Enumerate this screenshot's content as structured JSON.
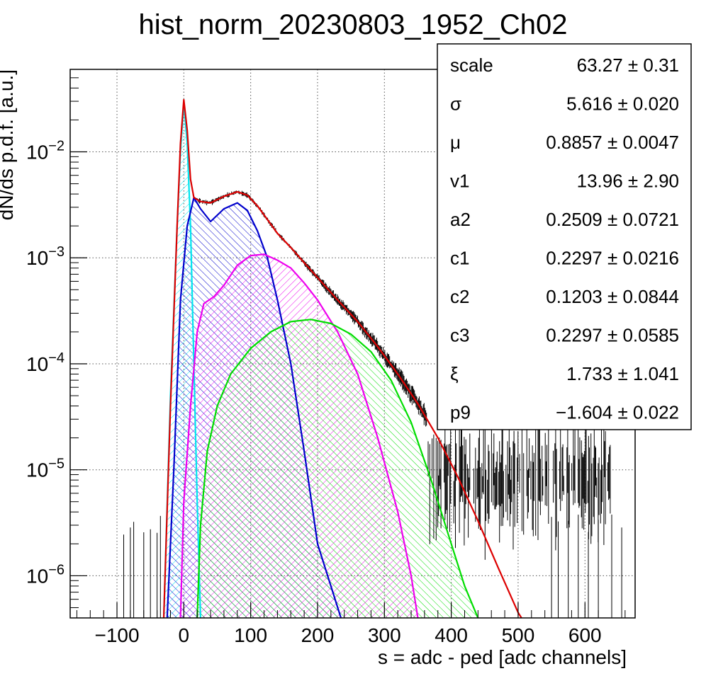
{
  "chart_data": {
    "type": "line",
    "title": "hist_norm_20230803_1952_Ch02",
    "xlabel": "s = adc - ped [adc channels]",
    "ylabel": "dN/ds p.d.f. [a.u.]",
    "xlim": [
      -170,
      675
    ],
    "ylim": [
      4e-07,
      0.06
    ],
    "y_scale": "log",
    "grid": true,
    "x_ticks": [
      -100,
      0,
      100,
      200,
      300,
      400,
      500,
      600
    ],
    "x_tick_labels": [
      "−100",
      "0",
      "100",
      "200",
      "300",
      "400",
      "500",
      "600"
    ],
    "y_ticks": [
      1e-06,
      1e-05,
      0.0001,
      0.001,
      0.01
    ],
    "y_tick_labels": [
      {
        "base": "10",
        "exp": "−6"
      },
      {
        "base": "10",
        "exp": "−5"
      },
      {
        "base": "10",
        "exp": "−4"
      },
      {
        "base": "10",
        "exp": "−3"
      },
      {
        "base": "10",
        "exp": "−2"
      }
    ],
    "series": [
      {
        "color": "#00e5ee",
        "hatched": true,
        "points": [
          [
            -30,
            4e-07
          ],
          [
            -20,
            5e-05
          ],
          [
            -10,
            0.002
          ],
          [
            -5,
            0.01
          ],
          [
            0,
            0.029
          ],
          [
            5,
            0.012
          ],
          [
            10,
            0.002
          ],
          [
            15,
            0.0001
          ],
          [
            20,
            5e-06
          ],
          [
            25,
            4e-07
          ]
        ]
      },
      {
        "color": "#0000cc",
        "hatched": true,
        "points": [
          [
            -25,
            4e-07
          ],
          [
            -15,
            1e-05
          ],
          [
            -5,
            0.0004
          ],
          [
            5,
            0.002
          ],
          [
            15,
            0.0037
          ],
          [
            25,
            0.0029
          ],
          [
            40,
            0.0022
          ],
          [
            60,
            0.0029
          ],
          [
            80,
            0.0033
          ],
          [
            95,
            0.0028
          ],
          [
            110,
            0.0018
          ],
          [
            125,
            0.001
          ],
          [
            140,
            0.0004
          ],
          [
            160,
            0.0001
          ],
          [
            180,
            1.5e-05
          ],
          [
            200,
            2e-06
          ],
          [
            220,
            8e-07
          ],
          [
            235,
            4e-07
          ]
        ]
      },
      {
        "color": "#ee00ee",
        "hatched": true,
        "points": [
          [
            -5,
            4e-07
          ],
          [
            0,
            5e-06
          ],
          [
            10,
            4e-05
          ],
          [
            20,
            0.0002
          ],
          [
            30,
            0.00037
          ],
          [
            45,
            0.00043
          ],
          [
            60,
            0.00055
          ],
          [
            80,
            0.00085
          ],
          [
            100,
            0.00105
          ],
          [
            120,
            0.00108
          ],
          [
            140,
            0.00095
          ],
          [
            160,
            0.0008
          ],
          [
            180,
            0.00058
          ],
          [
            200,
            0.0004
          ],
          [
            230,
            0.0002
          ],
          [
            260,
            8e-05
          ],
          [
            290,
            2e-05
          ],
          [
            320,
            4e-06
          ],
          [
            340,
            1e-06
          ],
          [
            350,
            4e-07
          ]
        ]
      },
      {
        "color": "#00dd00",
        "hatched": true,
        "points": [
          [
            20,
            4e-07
          ],
          [
            25,
            3e-06
          ],
          [
            35,
            1.5e-05
          ],
          [
            50,
            4e-05
          ],
          [
            70,
            8e-05
          ],
          [
            100,
            0.00014
          ],
          [
            130,
            0.0002
          ],
          [
            160,
            0.00025
          ],
          [
            190,
            0.000262
          ],
          [
            220,
            0.00024
          ],
          [
            250,
            0.00019
          ],
          [
            280,
            0.00013
          ],
          [
            310,
            7e-05
          ],
          [
            340,
            2.8e-05
          ],
          [
            370,
            8e-06
          ],
          [
            400,
            2e-06
          ],
          [
            420,
            8e-07
          ],
          [
            440,
            4e-07
          ]
        ]
      },
      {
        "color": "#dd0000",
        "hatched": false,
        "points": [
          [
            -30,
            4e-07
          ],
          [
            -20,
            4e-05
          ],
          [
            -10,
            0.002
          ],
          [
            -5,
            0.012
          ],
          [
            0,
            0.031
          ],
          [
            5,
            0.016
          ],
          [
            10,
            0.0055
          ],
          [
            15,
            0.0037
          ],
          [
            25,
            0.0034
          ],
          [
            40,
            0.0033
          ],
          [
            60,
            0.0038
          ],
          [
            80,
            0.0042
          ],
          [
            95,
            0.0039
          ],
          [
            110,
            0.0031
          ],
          [
            125,
            0.0023
          ],
          [
            140,
            0.0017
          ],
          [
            160,
            0.00125
          ],
          [
            180,
            0.0009
          ],
          [
            200,
            0.00065
          ],
          [
            230,
            0.0004
          ],
          [
            260,
            0.00025
          ],
          [
            290,
            0.000145
          ],
          [
            320,
            8e-05
          ],
          [
            350,
            4.2e-05
          ],
          [
            380,
            2e-05
          ],
          [
            410,
            8.5e-06
          ],
          [
            440,
            3.3e-06
          ],
          [
            470,
            1.2e-06
          ],
          [
            500,
            4.5e-07
          ],
          [
            505,
            4e-07
          ]
        ]
      }
    ],
    "stats": [
      {
        "name": "scale",
        "value": "63.27 ± 0.31"
      },
      {
        "name": "σ",
        "value": "5.616 ± 0.020"
      },
      {
        "name": "μ",
        "value": "0.8857 ± 0.0047"
      },
      {
        "name": "v1",
        "value": "13.96 ± 2.90"
      },
      {
        "name": "a2",
        "value": "0.2509 ± 0.0721"
      },
      {
        "name": "c1",
        "value": "0.2297 ± 0.0216"
      },
      {
        "name": "c2",
        "value": "0.1203 ± 0.0844"
      },
      {
        "name": "c3",
        "value": "0.2297 ± 0.0585"
      },
      {
        "name": "ξ",
        "value": "1.733 ± 1.041"
      },
      {
        "name": "p9",
        "value": "−1.604 ± 0.022"
      }
    ]
  }
}
